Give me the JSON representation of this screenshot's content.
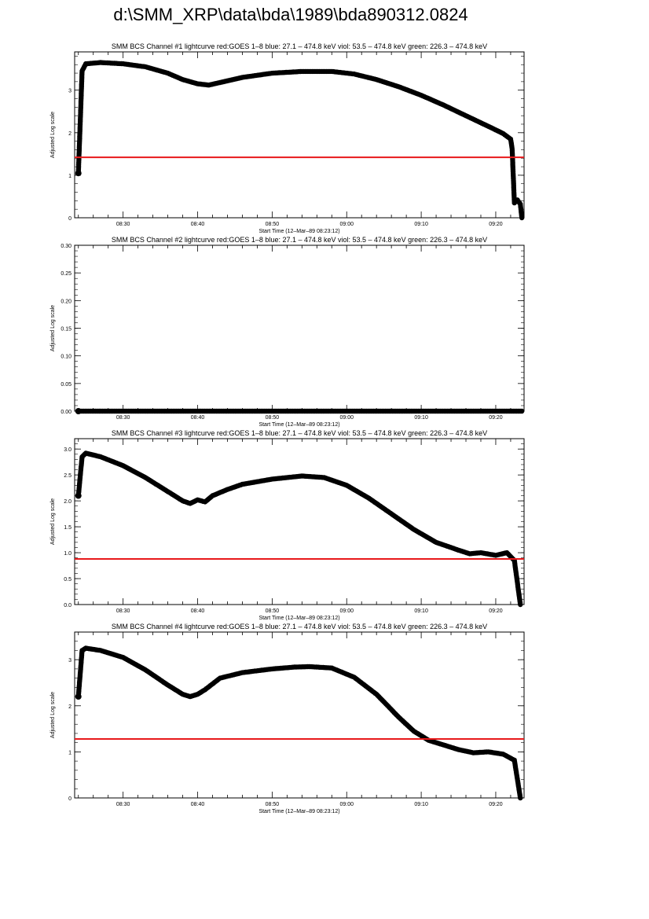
{
  "page": {
    "title": "d:\\SMM_XRP\\data\\bda\\1989\\bda890312.0824"
  },
  "chart_data": [
    {
      "type": "line",
      "title": "SMM BCS Channel #1 lightcurve  red:GOES 1–8  blue: 27.1 – 474.8 keV  viol: 53.5 – 474.8 keV  green: 226.3 – 474.8 keV",
      "xlabel": "Start Time (12–Mar–89 08:23:12)",
      "ylabel": "Adjusted Log scale",
      "x_range_min": [
        23.5,
        83.8
      ],
      "ylim": [
        0,
        3.9
      ],
      "y_ticks": [
        0,
        1,
        2,
        3
      ],
      "y_tick_labels": [
        "0",
        "1",
        "2",
        "3"
      ],
      "x_ticks": [
        30,
        40,
        50,
        60,
        70,
        80
      ],
      "x_tick_labels": [
        "08:30",
        "08:40",
        "08:50",
        "09:00",
        "09:10",
        "09:20"
      ],
      "hline": {
        "name": "GOES 1–8",
        "y": 1.42,
        "color": "#e8191b"
      },
      "series": [
        {
          "color": "#000000",
          "x": [
            24.0,
            24.5,
            25.0,
            27.0,
            30.0,
            33.0,
            36.0,
            38.0,
            40.0,
            41.5,
            43.0,
            46.0,
            50.0,
            54.0,
            58.0,
            61.0,
            64.0,
            67.0,
            70.0,
            73.0,
            76.0,
            79.0,
            81.0,
            82.0,
            82.2,
            82.5,
            82.9,
            83.3,
            83.5
          ],
          "y": [
            1.05,
            3.45,
            3.62,
            3.65,
            3.62,
            3.55,
            3.4,
            3.25,
            3.15,
            3.12,
            3.18,
            3.3,
            3.4,
            3.44,
            3.44,
            3.38,
            3.25,
            3.08,
            2.88,
            2.65,
            2.4,
            2.15,
            1.98,
            1.85,
            1.62,
            0.35,
            0.42,
            0.32,
            0.0
          ]
        }
      ]
    },
    {
      "type": "line",
      "title": "SMM BCS Channel #2 lightcurve  red:GOES 1–8  blue: 27.1 – 474.8 keV  viol: 53.5 – 474.8 keV  green: 226.3 – 474.8 keV",
      "xlabel": "Start Time (12–Mar–89 08:23:12)",
      "ylabel": "Adjusted Log scale",
      "x_range_min": [
        23.5,
        83.8
      ],
      "ylim": [
        0,
        0.3
      ],
      "y_ticks": [
        0.0,
        0.05,
        0.1,
        0.15,
        0.2,
        0.25,
        0.3
      ],
      "y_tick_labels": [
        "0.00",
        "0.05",
        "0.10",
        "0.15",
        "0.20",
        "0.25",
        "0.30"
      ],
      "x_ticks": [
        30,
        40,
        50,
        60,
        70,
        80
      ],
      "x_tick_labels": [
        "08:30",
        "08:40",
        "08:50",
        "09:00",
        "09:10",
        "09:20"
      ],
      "hline": null,
      "series": [
        {
          "color": "#000000",
          "x": [
            24.0,
            83.5
          ],
          "y": [
            0.0,
            0.0
          ]
        }
      ]
    },
    {
      "type": "line",
      "title": "SMM BCS Channel #3 lightcurve  red:GOES 1–8  blue: 27.1 – 474.8 keV  viol: 53.5 – 474.8 keV  green: 226.3 – 474.8 keV",
      "xlabel": "Start Time (12–Mar–89 08:23:12)",
      "ylabel": "Adjusted Log scale",
      "x_range_min": [
        23.5,
        83.8
      ],
      "ylim": [
        0,
        3.2
      ],
      "y_ticks": [
        0.0,
        0.5,
        1.0,
        1.5,
        2.0,
        2.5,
        3.0
      ],
      "y_tick_labels": [
        "0.0",
        "0.5",
        "1.0",
        "1.5",
        "2.0",
        "2.5",
        "3.0"
      ],
      "x_ticks": [
        30,
        40,
        50,
        60,
        70,
        80
      ],
      "x_tick_labels": [
        "08:30",
        "08:40",
        "08:50",
        "09:00",
        "09:10",
        "09:20"
      ],
      "hline": {
        "name": "GOES 1–8",
        "y": 0.88,
        "color": "#e8191b"
      },
      "series": [
        {
          "color": "#000000",
          "x": [
            24.0,
            24.5,
            25.0,
            27.0,
            30.0,
            33.0,
            36.0,
            38.0,
            39.0,
            40.0,
            41.0,
            42.0,
            44.0,
            46.0,
            50.0,
            54.0,
            57.0,
            60.0,
            63.0,
            66.0,
            69.0,
            72.0,
            75.0,
            76.5,
            78.0,
            80.0,
            81.5,
            82.5,
            83.3
          ],
          "y": [
            2.1,
            2.85,
            2.92,
            2.85,
            2.68,
            2.45,
            2.18,
            2.0,
            1.95,
            2.02,
            1.98,
            2.1,
            2.22,
            2.32,
            2.42,
            2.48,
            2.45,
            2.3,
            2.05,
            1.75,
            1.45,
            1.2,
            1.05,
            0.98,
            1.0,
            0.95,
            1.0,
            0.85,
            0.0
          ]
        }
      ]
    },
    {
      "type": "line",
      "title": "SMM BCS Channel #4 lightcurve  red:GOES 1–8  blue: 27.1 – 474.8 keV  viol: 53.5 – 474.8 keV  green: 226.3 – 474.8 keV",
      "xlabel": "Start Time (12–Mar–89 08:23:12)",
      "ylabel": "Adjusted Log scale",
      "x_range_min": [
        23.5,
        83.8
      ],
      "ylim": [
        0,
        3.6
      ],
      "y_ticks": [
        0,
        1,
        2,
        3
      ],
      "y_tick_labels": [
        "0",
        "1",
        "2",
        "3"
      ],
      "x_ticks": [
        30,
        40,
        50,
        60,
        70,
        80
      ],
      "x_tick_labels": [
        "08:30",
        "08:40",
        "08:50",
        "09:00",
        "09:10",
        "09:20"
      ],
      "hline": {
        "name": "GOES 1–8",
        "y": 1.28,
        "color": "#e8191b"
      },
      "series": [
        {
          "color": "#000000",
          "x": [
            24.0,
            24.5,
            25.0,
            27.0,
            30.0,
            33.0,
            36.0,
            38.0,
            39.0,
            40.0,
            41.0,
            43.0,
            46.0,
            50.0,
            53.0,
            55.0,
            58.0,
            61.0,
            64.0,
            67.0,
            69.0,
            71.0,
            73.0,
            75.0,
            77.0,
            79.0,
            81.0,
            82.5,
            83.3
          ],
          "y": [
            2.2,
            3.2,
            3.25,
            3.2,
            3.05,
            2.78,
            2.45,
            2.25,
            2.2,
            2.25,
            2.35,
            2.6,
            2.72,
            2.8,
            2.84,
            2.85,
            2.82,
            2.62,
            2.25,
            1.75,
            1.45,
            1.25,
            1.15,
            1.05,
            0.98,
            1.0,
            0.95,
            0.82,
            0.0
          ]
        }
      ]
    }
  ]
}
